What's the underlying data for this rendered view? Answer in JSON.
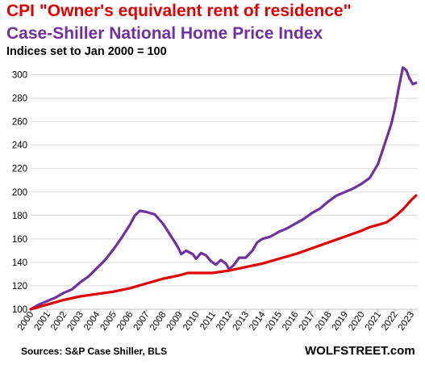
{
  "chart_data": {
    "type": "line",
    "title_lines": [
      {
        "text": "CPI \"Owner's equivalent rent of residence\"",
        "color": "#e00000"
      },
      {
        "text": "Case-Shiller National Home Price Index",
        "color": "#7030a0"
      }
    ],
    "subtitle": "Indices set to Jan 2000 = 100",
    "source": "Sources: S&P Case Shiller, BLS",
    "brand": "WOLFSTREET.com",
    "xlim": [
      2000,
      2023.4
    ],
    "ylim": [
      100,
      310
    ],
    "y_ticks": [
      100,
      120,
      140,
      160,
      180,
      200,
      220,
      240,
      260,
      280,
      300
    ],
    "x_tick_labels": [
      "2000",
      "2001",
      "2002",
      "2003",
      "2004",
      "2005",
      "2006",
      "2007",
      "2008",
      "2009",
      "2010",
      "2011",
      "2012",
      "2013",
      "2014",
      "2015",
      "2016",
      "2017",
      "2018",
      "2019",
      "2020",
      "2021",
      "2022",
      "2023"
    ],
    "grid": "horizontal",
    "series": [
      {
        "name": "Case-Shiller National Home Price Index",
        "color": "#7030a0",
        "points": [
          [
            2000.0,
            100
          ],
          [
            2000.5,
            104
          ],
          [
            2001.0,
            107
          ],
          [
            2001.5,
            110
          ],
          [
            2002.0,
            114
          ],
          [
            2002.5,
            117
          ],
          [
            2003.0,
            123
          ],
          [
            2003.5,
            128
          ],
          [
            2004.0,
            135
          ],
          [
            2004.5,
            142
          ],
          [
            2005.0,
            151
          ],
          [
            2005.5,
            161
          ],
          [
            2006.0,
            172
          ],
          [
            2006.3,
            180
          ],
          [
            2006.6,
            184
          ],
          [
            2007.0,
            183
          ],
          [
            2007.5,
            181
          ],
          [
            2008.0,
            173
          ],
          [
            2008.5,
            162
          ],
          [
            2008.9,
            153
          ],
          [
            2009.1,
            147
          ],
          [
            2009.4,
            150
          ],
          [
            2009.8,
            147
          ],
          [
            2010.0,
            143
          ],
          [
            2010.3,
            148
          ],
          [
            2010.6,
            146
          ],
          [
            2010.9,
            141
          ],
          [
            2011.2,
            138
          ],
          [
            2011.5,
            142
          ],
          [
            2011.8,
            139
          ],
          [
            2012.0,
            134
          ],
          [
            2012.3,
            138
          ],
          [
            2012.6,
            144
          ],
          [
            2013.0,
            144
          ],
          [
            2013.4,
            150
          ],
          [
            2013.7,
            157
          ],
          [
            2014.0,
            160
          ],
          [
            2014.5,
            162
          ],
          [
            2015.0,
            166
          ],
          [
            2015.5,
            169
          ],
          [
            2016.0,
            173
          ],
          [
            2016.5,
            177
          ],
          [
            2017.0,
            182
          ],
          [
            2017.5,
            186
          ],
          [
            2018.0,
            192
          ],
          [
            2018.5,
            197
          ],
          [
            2019.0,
            200
          ],
          [
            2019.5,
            203
          ],
          [
            2020.0,
            207
          ],
          [
            2020.5,
            212
          ],
          [
            2021.0,
            224
          ],
          [
            2021.5,
            245
          ],
          [
            2021.8,
            258
          ],
          [
            2022.0,
            270
          ],
          [
            2022.2,
            285
          ],
          [
            2022.5,
            306
          ],
          [
            2022.7,
            304
          ],
          [
            2022.9,
            297
          ],
          [
            2023.1,
            292
          ],
          [
            2023.3,
            293
          ]
        ]
      },
      {
        "name": "CPI \"Owner's equivalent rent of residence\"",
        "color": "#e00000",
        "points": [
          [
            2000.0,
            100
          ],
          [
            2001.0,
            104
          ],
          [
            2002.0,
            108
          ],
          [
            2003.0,
            111
          ],
          [
            2004.0,
            113
          ],
          [
            2005.0,
            115
          ],
          [
            2006.0,
            118
          ],
          [
            2007.0,
            122
          ],
          [
            2008.0,
            126
          ],
          [
            2009.0,
            129
          ],
          [
            2009.5,
            131
          ],
          [
            2010.0,
            131
          ],
          [
            2010.5,
            131
          ],
          [
            2011.0,
            131
          ],
          [
            2011.5,
            132
          ],
          [
            2012.0,
            133
          ],
          [
            2013.0,
            136
          ],
          [
            2014.0,
            139
          ],
          [
            2015.0,
            143
          ],
          [
            2016.0,
            147
          ],
          [
            2017.0,
            152
          ],
          [
            2018.0,
            157
          ],
          [
            2019.0,
            162
          ],
          [
            2020.0,
            167
          ],
          [
            2020.5,
            170
          ],
          [
            2021.0,
            172
          ],
          [
            2021.5,
            174
          ],
          [
            2022.0,
            179
          ],
          [
            2022.5,
            185
          ],
          [
            2023.0,
            193
          ],
          [
            2023.3,
            197
          ]
        ]
      }
    ]
  }
}
